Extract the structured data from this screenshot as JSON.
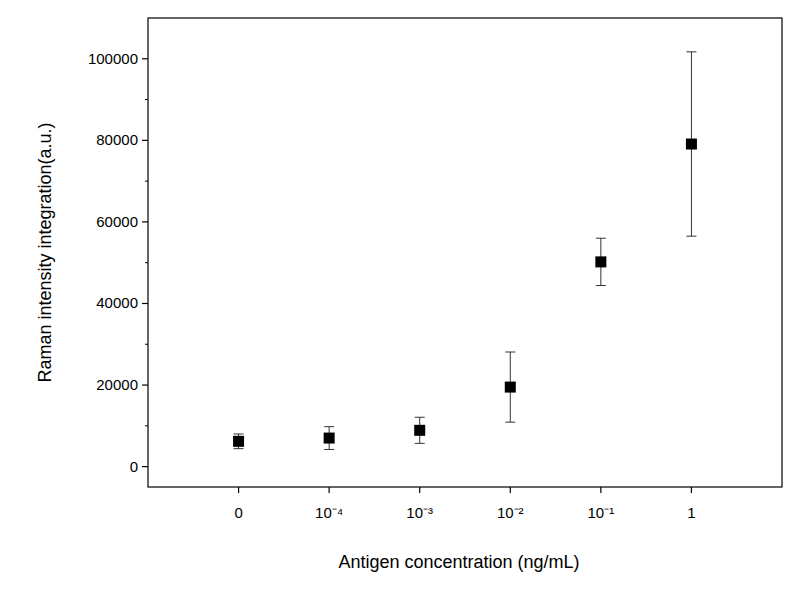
{
  "chart_data": {
    "type": "scatter",
    "x_label": "Antigen concentration (ng/mL)",
    "y_label": "Raman intensity integration(a.u.)",
    "categories": [
      "0",
      "10⁻⁴",
      "10⁻³",
      "10⁻²",
      "10⁻¹",
      "1"
    ],
    "values": [
      6200,
      7000,
      8900,
      19500,
      50200,
      79100
    ],
    "errors": [
      1800,
      2800,
      3200,
      8600,
      5800,
      22600
    ],
    "color": "#000000",
    "marker": "square",
    "ylim": [
      -5000,
      110000
    ],
    "yticks": [
      0,
      20000,
      40000,
      60000,
      80000,
      100000
    ],
    "grid": false
  }
}
